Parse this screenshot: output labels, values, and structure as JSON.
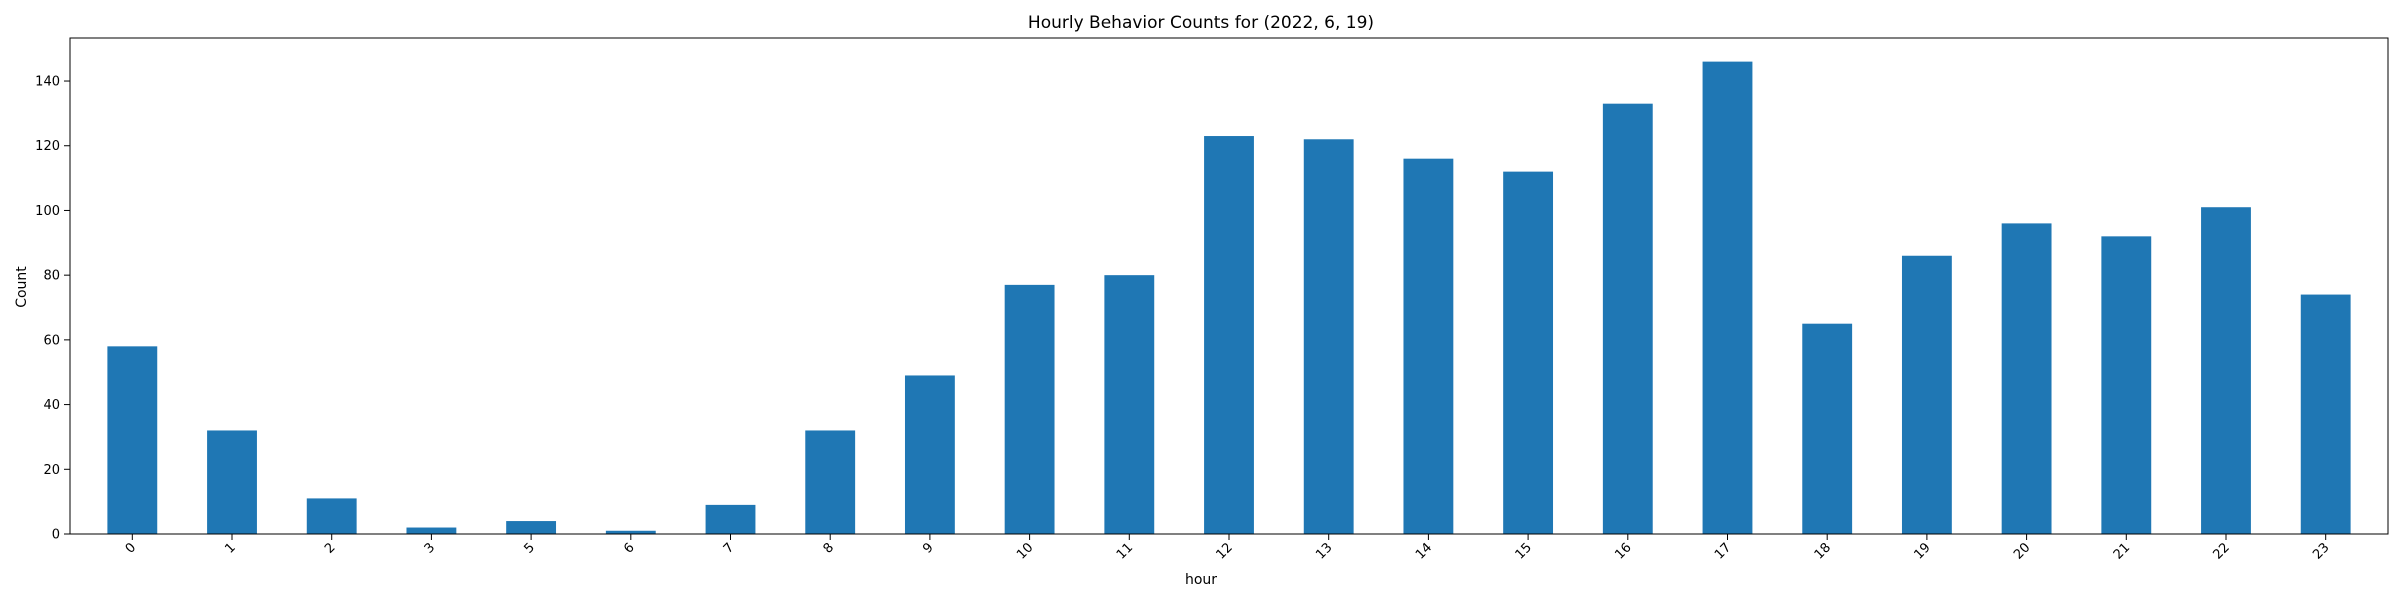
{
  "chart_data": {
    "type": "bar",
    "title": "Hourly Behavior Counts for (2022, 6, 19)",
    "xlabel": "hour",
    "ylabel": "Count",
    "categories": [
      "0",
      "1",
      "2",
      "3",
      "5",
      "6",
      "7",
      "8",
      "9",
      "10",
      "11",
      "12",
      "13",
      "14",
      "15",
      "16",
      "17",
      "18",
      "19",
      "20",
      "21",
      "22",
      "23"
    ],
    "values": [
      58,
      32,
      11,
      2,
      4,
      1,
      9,
      32,
      49,
      77,
      80,
      123,
      122,
      116,
      112,
      133,
      146,
      65,
      86,
      96,
      92,
      101,
      74
    ],
    "ylim": [
      0,
      153.3
    ],
    "yticks": [
      0,
      20,
      40,
      60,
      80,
      100,
      120,
      140
    ],
    "grid": false,
    "colors": {
      "bar": "#1f77b4",
      "axis": "#000000"
    }
  }
}
